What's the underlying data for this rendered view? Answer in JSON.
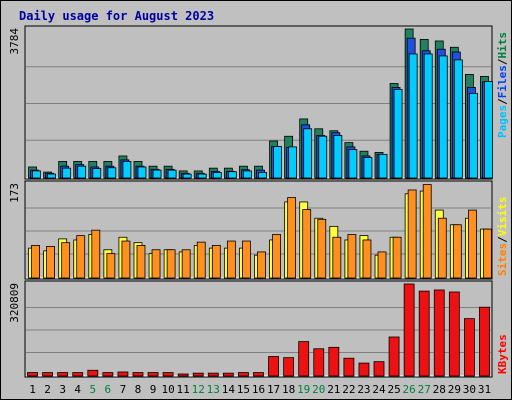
{
  "chart_data": {
    "type": "bar",
    "title": "Daily usage for August 2023",
    "days": [
      "1",
      "2",
      "3",
      "4",
      "5",
      "6",
      "7",
      "8",
      "9",
      "10",
      "11",
      "12",
      "13",
      "14",
      "15",
      "16",
      "17",
      "18",
      "19",
      "20",
      "21",
      "22",
      "23",
      "24",
      "25",
      "26",
      "27",
      "28",
      "29",
      "30",
      "31"
    ],
    "weekend_days": [
      "5",
      "6",
      "12",
      "13",
      "19",
      "20",
      "26",
      "27"
    ],
    "panels": [
      {
        "id": "hits",
        "max_label": "3784",
        "ymax": 3784,
        "legend": [
          {
            "label": "Hits",
            "color": "#008040"
          },
          {
            "label": "Files",
            "color": "#0040ff"
          },
          {
            "label": "Pages",
            "color": "#00c0ff"
          }
        ],
        "series": [
          {
            "name": "Hits",
            "color": "#208060",
            "values": [
              280,
              150,
              420,
              420,
              420,
              420,
              560,
              420,
              300,
              300,
              180,
              180,
              250,
              250,
              300,
              300,
              940,
              1060,
              1500,
              1250,
              1200,
              900,
              680,
              650,
              2400,
              3784,
              3520,
              3480,
              3320,
              2630,
              2580
            ]
          },
          {
            "name": "Files",
            "color": "#2050e0",
            "values": [
              200,
              120,
              300,
              340,
              280,
              300,
              460,
              300,
              220,
              220,
              120,
              120,
              170,
              170,
              210,
              200,
              800,
              780,
              1350,
              1080,
              1150,
              790,
              560,
              600,
              2300,
              3550,
              3230,
              3270,
              3200,
              2300,
              2440
            ]
          },
          {
            "name": "Pages",
            "color": "#00ccff",
            "values": [
              180,
              100,
              250,
              300,
              240,
              260,
              420,
              280,
              200,
              200,
              100,
              100,
              140,
              160,
              180,
              140,
              800,
              790,
              1250,
              1060,
              1080,
              720,
              520,
              600,
              2250,
              3150,
              3150,
              3100,
              3000,
              2150,
              2450
            ]
          }
        ]
      },
      {
        "id": "visits",
        "max_label": "173",
        "ymax": 173,
        "legend": [
          {
            "label": "Visits",
            "color": "#ffff00"
          },
          {
            "label": "Sites",
            "color": "#ff8000"
          }
        ],
        "series": [
          {
            "name": "Visits",
            "color": "#ffff40",
            "values": [
              55,
              50,
              72,
              70,
              80,
              52,
              75,
              65,
              45,
              52,
              48,
              60,
              55,
              55,
              55,
              42,
              70,
              140,
              140,
              110,
              95,
              70,
              78,
              42,
              75,
              155,
              160,
              125,
              98,
              110,
              90
            ]
          },
          {
            "name": "Sites",
            "color": "#ff9020",
            "values": [
              60,
              58,
              65,
              78,
              88,
              45,
              68,
              60,
              52,
              52,
              52,
              66,
              60,
              68,
              68,
              48,
              80,
              148,
              126,
              108,
              75,
              80,
              70,
              48,
              75,
              162,
              172,
              110,
              98,
              125,
              90
            ]
          }
        ]
      },
      {
        "id": "kbytes",
        "max_label": "320809",
        "ymax": 320809,
        "legend": [
          {
            "label": "KBytes",
            "color": "#ff0000"
          }
        ],
        "series": [
          {
            "name": "KBytes",
            "color": "#ee1111",
            "values": [
              12000,
              12000,
              12000,
              12000,
              20000,
              12000,
              14000,
              12000,
              12000,
              12000,
              7000,
              10000,
              10000,
              10000,
              12000,
              12000,
              68000,
              64000,
              120000,
              95000,
              100000,
              62000,
              45000,
              50000,
              136000,
              320809,
              296000,
              300000,
              293000,
              200000,
              240000
            ]
          }
        ]
      }
    ]
  }
}
